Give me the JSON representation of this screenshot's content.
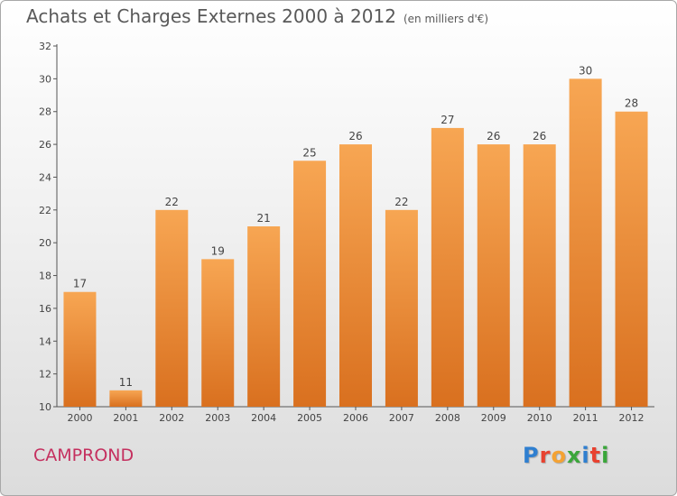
{
  "header": {
    "title": "Achats et Charges Externes 2000 à 2012",
    "subtitle": "(en milliers d'€)"
  },
  "footer": {
    "commune": "CAMPROND",
    "logo_text": "Proxiti",
    "logo_letters": [
      {
        "ch": "P",
        "color": "#2f7fd0"
      },
      {
        "ch": "r",
        "color": "#e8412f"
      },
      {
        "ch": "o",
        "color": "#f4a233"
      },
      {
        "ch": "x",
        "color": "#3aa63a"
      },
      {
        "ch": "i",
        "color": "#2f7fd0"
      },
      {
        "ch": "t",
        "color": "#e8412f"
      },
      {
        "ch": "i",
        "color": "#3aa63a"
      }
    ]
  },
  "colors": {
    "bar_top": "#f7a653",
    "bar_bottom": "#d9701f",
    "axis": "#555555",
    "text": "#444444"
  },
  "chart_data": {
    "type": "bar",
    "categories": [
      "2000",
      "2001",
      "2002",
      "2003",
      "2004",
      "2005",
      "2006",
      "2007",
      "2008",
      "2009",
      "2010",
      "2011",
      "2012"
    ],
    "values": [
      17,
      11,
      22,
      19,
      21,
      25,
      26,
      22,
      27,
      26,
      26,
      30,
      28
    ],
    "title": "Achats et Charges Externes 2000 à 2012",
    "ylim": [
      10,
      32
    ],
    "yticks": [
      10,
      12,
      14,
      16,
      18,
      20,
      22,
      24,
      26,
      28,
      30,
      32
    ],
    "grid": false,
    "data_labels": true
  }
}
